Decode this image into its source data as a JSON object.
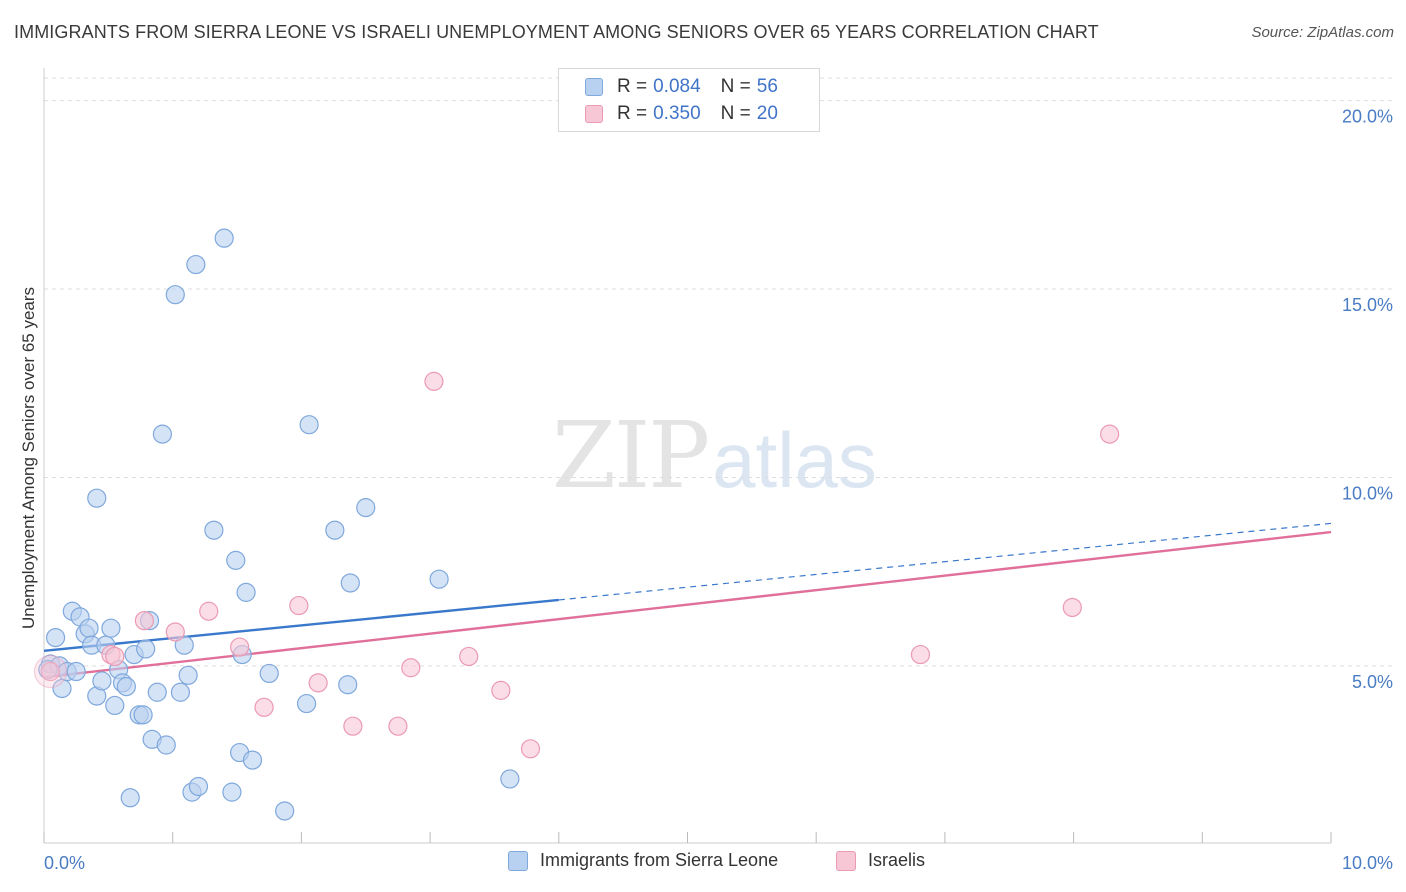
{
  "title": "IMMIGRANTS FROM SIERRA LEONE VS ISRAELI UNEMPLOYMENT AMONG SENIORS OVER 65 YEARS CORRELATION CHART",
  "source": "Source: ZipAtlas.com",
  "watermark": {
    "zip": "ZIP",
    "atlas": "atlas"
  },
  "legend": {
    "rows": [
      {
        "r_label": "R =",
        "r_value": "0.084",
        "n_label": "N =",
        "n_value": "56"
      },
      {
        "r_label": "R =",
        "r_value": "0.350",
        "n_label": "N =",
        "n_value": "20"
      }
    ]
  },
  "bottom_legend": {
    "series1": "Immigrants from Sierra Leone",
    "series2": "Israelis"
  },
  "colors": {
    "blue_fill": "#b9d1f0",
    "blue_stroke": "#7fa8dc",
    "blue_line": "#3a78cc",
    "pink_fill": "#f7c7d6",
    "pink_stroke": "#eb9ab3",
    "pink_line": "#e0709a",
    "grid": "#dddddd",
    "axis_label": "#4a7cc4"
  },
  "chart_data": {
    "type": "scatter",
    "title": "IMMIGRANTS FROM SIERRA LEONE VS ISRAELI UNEMPLOYMENT AMONG SENIORS OVER 65 YEARS CORRELATION CHART",
    "xlabel": "",
    "ylabel": "Unemployment Among Seniors over 65 years",
    "xlim": [
      0,
      10
    ],
    "ylim": [
      0.3,
      20.6
    ],
    "x_tick_labels": [
      {
        "value": 0,
        "label": "0.0%"
      },
      {
        "value": 10,
        "label": "10.0%"
      }
    ],
    "y_ticks": [
      {
        "value": 5,
        "label": "5.0%"
      },
      {
        "value": 10,
        "label": "10.0%"
      },
      {
        "value": 15,
        "label": "15.0%"
      },
      {
        "value": 20,
        "label": "20.0%"
      }
    ],
    "x_minor_ticks": [
      0,
      1,
      2,
      3,
      4,
      5,
      6,
      7,
      8,
      9,
      10
    ],
    "grid": true,
    "series": [
      {
        "name": "Immigrants from Sierra Leone",
        "points": [
          [
            0.05,
            5.05
          ],
          [
            0.09,
            5.75
          ],
          [
            0.12,
            5.0
          ],
          [
            0.14,
            4.4
          ],
          [
            0.18,
            4.85
          ],
          [
            0.22,
            6.45
          ],
          [
            0.25,
            4.85
          ],
          [
            0.28,
            6.3
          ],
          [
            0.32,
            5.85
          ],
          [
            0.35,
            6.0
          ],
          [
            0.37,
            5.55
          ],
          [
            0.41,
            9.45
          ],
          [
            0.41,
            4.2
          ],
          [
            0.45,
            4.6
          ],
          [
            0.48,
            5.55
          ],
          [
            0.52,
            6.0
          ],
          [
            0.55,
            3.95
          ],
          [
            0.58,
            4.9
          ],
          [
            0.61,
            4.55
          ],
          [
            0.64,
            4.45
          ],
          [
            0.67,
            1.5
          ],
          [
            0.7,
            5.3
          ],
          [
            0.74,
            3.7
          ],
          [
            0.77,
            3.7
          ],
          [
            0.79,
            5.45
          ],
          [
            0.82,
            6.2
          ],
          [
            0.84,
            3.05
          ],
          [
            0.88,
            4.3
          ],
          [
            0.92,
            11.15
          ],
          [
            0.95,
            2.9
          ],
          [
            1.02,
            14.85
          ],
          [
            1.06,
            4.3
          ],
          [
            1.09,
            5.55
          ],
          [
            1.12,
            4.75
          ],
          [
            1.15,
            1.65
          ],
          [
            1.18,
            15.65
          ],
          [
            1.2,
            1.8
          ],
          [
            1.32,
            8.6
          ],
          [
            1.4,
            16.35
          ],
          [
            1.46,
            1.65
          ],
          [
            1.49,
            7.8
          ],
          [
            1.52,
            2.7
          ],
          [
            1.54,
            5.3
          ],
          [
            1.57,
            6.95
          ],
          [
            1.62,
            2.5
          ],
          [
            1.75,
            4.8
          ],
          [
            1.87,
            1.15
          ],
          [
            2.04,
            4.0
          ],
          [
            2.06,
            11.4
          ],
          [
            2.26,
            8.6
          ],
          [
            2.36,
            4.5
          ],
          [
            2.38,
            7.2
          ],
          [
            2.5,
            9.2
          ],
          [
            3.07,
            7.3
          ],
          [
            3.62,
            2.0
          ],
          [
            0.03,
            4.9
          ]
        ]
      },
      {
        "name": "Israelis",
        "points": [
          [
            0.05,
            4.85
          ],
          [
            0.52,
            5.3
          ],
          [
            0.55,
            5.25
          ],
          [
            0.78,
            6.2
          ],
          [
            1.02,
            5.9
          ],
          [
            1.28,
            6.45
          ],
          [
            1.52,
            5.5
          ],
          [
            1.71,
            3.9
          ],
          [
            1.98,
            6.6
          ],
          [
            2.13,
            4.55
          ],
          [
            2.4,
            3.4
          ],
          [
            2.75,
            3.4
          ],
          [
            2.85,
            4.95
          ],
          [
            3.03,
            12.55
          ],
          [
            3.3,
            5.25
          ],
          [
            3.55,
            4.35
          ],
          [
            3.78,
            2.8
          ],
          [
            6.81,
            5.3
          ],
          [
            7.99,
            6.55
          ],
          [
            8.28,
            11.15
          ]
        ]
      }
    ],
    "trend_lines": [
      {
        "series": "Immigrants from Sierra Leone",
        "solid": [
          [
            0.0,
            5.4
          ],
          [
            4.0,
            6.75
          ]
        ],
        "dashed": [
          [
            4.0,
            6.75
          ],
          [
            10.0,
            8.78
          ]
        ]
      },
      {
        "series": "Israelis",
        "solid": [
          [
            0.0,
            4.7
          ],
          [
            10.0,
            8.55
          ]
        ]
      }
    ]
  }
}
